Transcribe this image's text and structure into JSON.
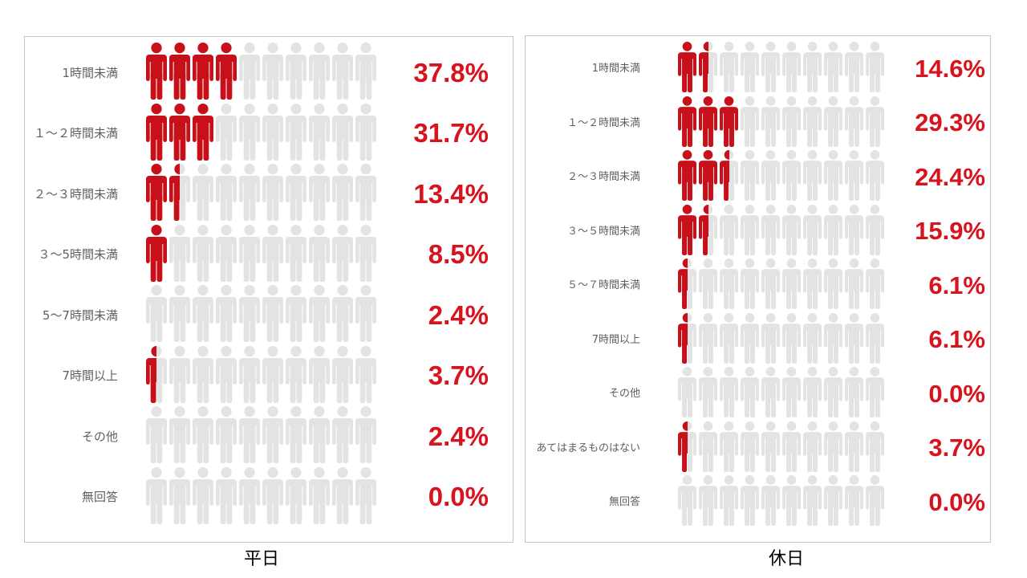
{
  "colors": {
    "filled_icon": "#c8101a",
    "empty_icon": "#e3e3e3",
    "value_text": "#d7141e",
    "label_text": "#5f5f5f",
    "caption_text": "#000000",
    "panel_border": "#c6c6c6"
  },
  "chart_data": [
    {
      "type": "bar",
      "mark": "person-icon",
      "title": "平日",
      "categories": [
        "1時間未満",
        "１～２時間未満",
        "２～３時間未満",
        "３～5時間未満",
        "5～7時間未満",
        "7時間以上",
        "その他",
        "無回答"
      ],
      "values": [
        37.8,
        31.7,
        13.4,
        8.5,
        2.4,
        3.7,
        2.4,
        0.0
      ],
      "value_labels": [
        "37.8%",
        "31.7%",
        "13.4%",
        "8.5%",
        "2.4%",
        "3.7%",
        "2.4%",
        "0.0%"
      ],
      "xlim": [
        0,
        100
      ],
      "grid": false
    },
    {
      "type": "bar",
      "mark": "person-icon",
      "title": "休日",
      "categories": [
        "1時間未満",
        "１～２時間未満",
        "２～３時間未満",
        "３～５時間未満",
        "５～７時間未満",
        "7時間以上",
        "その他",
        "あてはまるものはない",
        "無回答"
      ],
      "values": [
        14.6,
        29.3,
        24.4,
        15.9,
        6.1,
        6.1,
        0.0,
        3.7,
        0.0
      ],
      "value_labels": [
        "14.6%",
        "29.3%",
        "24.4%",
        "15.9%",
        "6.1%",
        "6.1%",
        "0.0%",
        "3.7%",
        "0.0%"
      ],
      "xlim": [
        0,
        100
      ],
      "grid": false
    }
  ]
}
